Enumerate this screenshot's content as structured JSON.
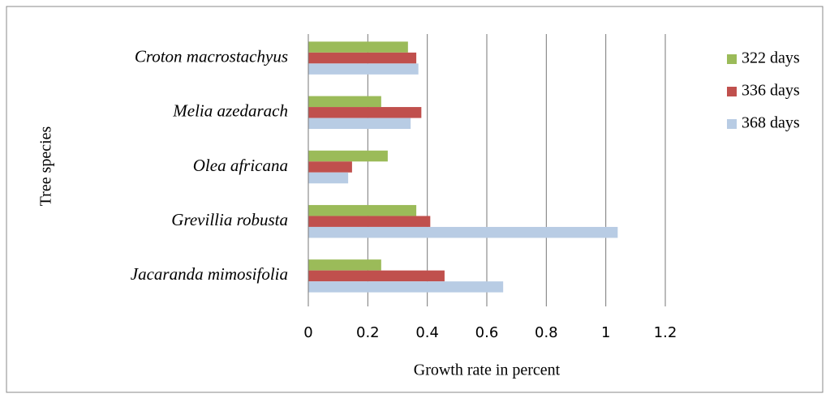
{
  "chart_data": {
    "type": "hbar",
    "categories": [
      "Croton macrostachyus",
      "Melia azedarach",
      "Olea africana",
      "Grevillia robusta",
      "Jacaranda mimosifolia"
    ],
    "series": [
      {
        "name": "322 days",
        "color": "#9bbb59",
        "values": [
          0.335,
          0.245,
          0.267,
          0.363,
          0.245
        ]
      },
      {
        "name": "336 days",
        "color": "#c0504d",
        "values": [
          0.363,
          0.38,
          0.147,
          0.41,
          0.458
        ]
      },
      {
        "name": "368 days",
        "color": "#b8cce4",
        "values": [
          0.37,
          0.344,
          0.134,
          1.04,
          0.655
        ]
      }
    ],
    "xlim": [
      0,
      1.2
    ],
    "xticks": [
      0,
      0.2,
      0.4,
      0.6,
      0.8,
      1,
      1.2
    ],
    "xlabel": "Growth rate in percent",
    "ylabel": "Tree species",
    "grid": true,
    "legend": "right"
  }
}
